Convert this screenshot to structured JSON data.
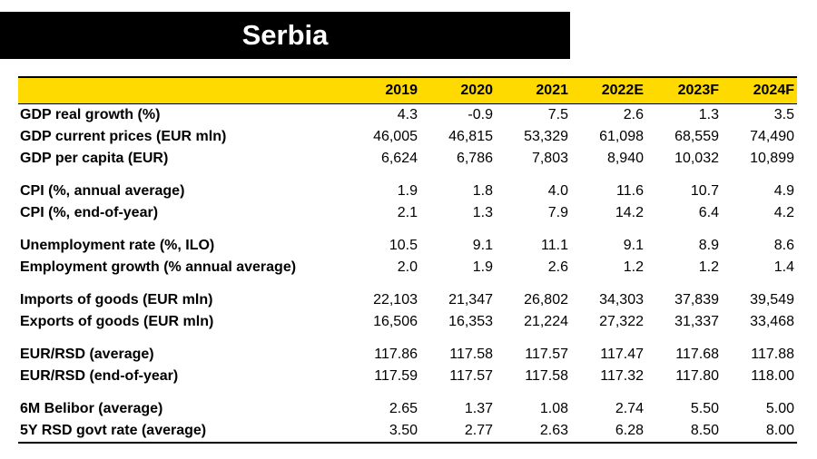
{
  "title": "Serbia",
  "colors": {
    "header_bg": "#ffda00",
    "title_bg": "#000000"
  },
  "years": [
    "2019",
    "2020",
    "2021",
    "2022E",
    "2023F",
    "2024F"
  ],
  "groups": [
    {
      "rows": [
        {
          "label": "GDP real growth (%)",
          "values": [
            "4.3",
            "-0.9",
            "7.5",
            "2.6",
            "1.3",
            "3.5"
          ]
        },
        {
          "label": "GDP current prices (EUR mln)",
          "values": [
            "46,005",
            "46,815",
            "53,329",
            "61,098",
            "68,559",
            "74,490"
          ]
        },
        {
          "label": "GDP per capita (EUR)",
          "values": [
            "6,624",
            "6,786",
            "7,803",
            "8,940",
            "10,032",
            "10,899"
          ]
        }
      ]
    },
    {
      "rows": [
        {
          "label": "CPI (%, annual average)",
          "values": [
            "1.9",
            "1.8",
            "4.0",
            "11.6",
            "10.7",
            "4.9"
          ]
        },
        {
          "label": "CPI (%, end-of-year)",
          "values": [
            "2.1",
            "1.3",
            "7.9",
            "14.2",
            "6.4",
            "4.2"
          ]
        }
      ]
    },
    {
      "rows": [
        {
          "label": "Unemployment rate (%, ILO)",
          "values": [
            "10.5",
            "9.1",
            "11.1",
            "9.1",
            "8.9",
            "8.6"
          ]
        },
        {
          "label": "Employment growth (% annual average)",
          "values": [
            "2.0",
            "1.9",
            "2.6",
            "1.2",
            "1.2",
            "1.4"
          ]
        }
      ]
    },
    {
      "rows": [
        {
          "label": "Imports of goods (EUR mln)",
          "values": [
            "22,103",
            "21,347",
            "26,802",
            "34,303",
            "37,839",
            "39,549"
          ]
        },
        {
          "label": "Exports of goods (EUR mln)",
          "values": [
            "16,506",
            "16,353",
            "21,224",
            "27,322",
            "31,337",
            "33,468"
          ]
        }
      ]
    },
    {
      "rows": [
        {
          "label": "EUR/RSD (average)",
          "values": [
            "117.86",
            "117.58",
            "117.57",
            "117.47",
            "117.68",
            "117.88"
          ]
        },
        {
          "label": "EUR/RSD (end-of-year)",
          "values": [
            "117.59",
            "117.57",
            "117.58",
            "117.32",
            "117.80",
            "118.00"
          ]
        }
      ]
    },
    {
      "rows": [
        {
          "label": "6M Belibor (average)",
          "values": [
            "2.65",
            "1.37",
            "1.08",
            "2.74",
            "5.50",
            "5.00"
          ]
        },
        {
          "label": "5Y RSD govt rate (average)",
          "values": [
            "3.50",
            "2.77",
            "2.63",
            "6.28",
            "8.50",
            "8.00"
          ]
        }
      ]
    }
  ]
}
